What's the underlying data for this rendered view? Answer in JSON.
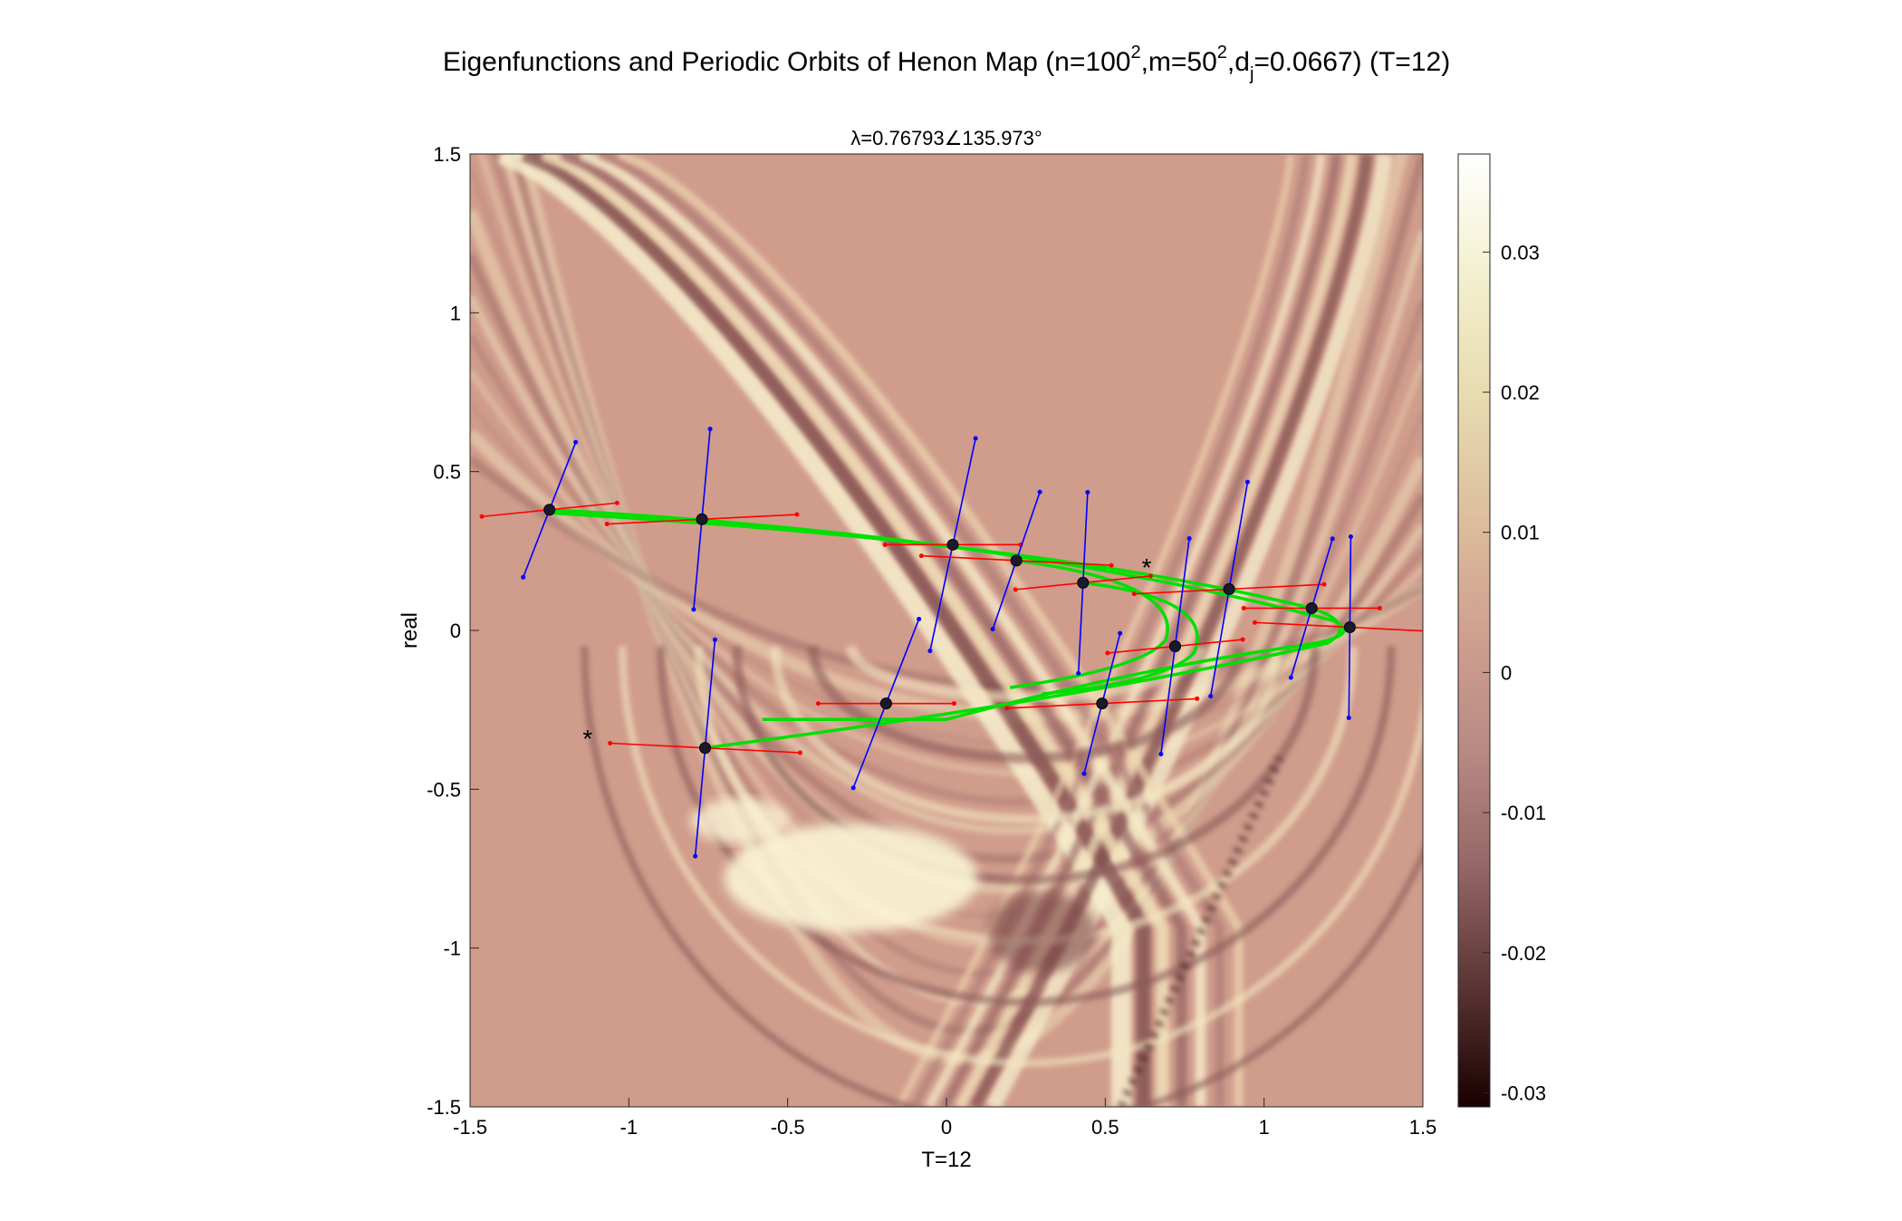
{
  "figure": {
    "title_main": "Eigenfunctions and Periodic Orbits of Henon Map (n=100",
    "title_sup1": "2",
    "title_mid": ",m=50",
    "title_sup2": "2",
    "title_mid2": ",d",
    "title_sub": "j",
    "title_end": "=0.0667) (T=12)"
  },
  "chart_data": {
    "type": "heatmap",
    "subtitle": "λ=0.76793∠135.973°",
    "xlabel": "T=12",
    "ylabel": "real",
    "xlim": [
      -1.5,
      1.5
    ],
    "ylim": [
      -1.5,
      1.5
    ],
    "x_ticks": [
      "-1.5",
      "-1",
      "-0.5",
      "0",
      "0.5",
      "1",
      "1.5"
    ],
    "y_ticks": [
      "-1.5",
      "-1",
      "-0.5",
      "0",
      "0.5",
      "1",
      "1.5"
    ],
    "colorbar": {
      "range": [
        -0.031,
        0.037
      ],
      "ticks": [
        "-0.03",
        "-0.02",
        "-0.01",
        "0",
        "0.01",
        "0.02",
        "0.03"
      ],
      "colormap": [
        "#1a0000",
        "#5a3434",
        "#946666",
        "#b98a84",
        "#d0a090",
        "#ddc09e",
        "#e8dcb0",
        "#f3f0d0",
        "#ffffff"
      ]
    },
    "background_color": "#d09c8c",
    "orbit_color": "#00e000",
    "stable_vector_color": "#0000ff",
    "unstable_vector_color": "#ff0000",
    "orbit_points": [
      [
        -1.25,
        0.38
      ],
      [
        -0.77,
        0.35
      ],
      [
        0.02,
        0.27
      ],
      [
        0.22,
        0.22
      ],
      [
        0.43,
        0.15
      ],
      [
        0.89,
        0.13
      ],
      [
        1.15,
        0.07
      ],
      [
        1.27,
        0.01
      ],
      [
        0.72,
        -0.05
      ],
      [
        0.49,
        -0.23
      ],
      [
        -0.19,
        -0.23
      ],
      [
        -0.76,
        -0.37
      ]
    ],
    "extra_markers": [
      [
        -1.13,
        -0.34
      ],
      [
        0.63,
        0.2
      ]
    ]
  }
}
